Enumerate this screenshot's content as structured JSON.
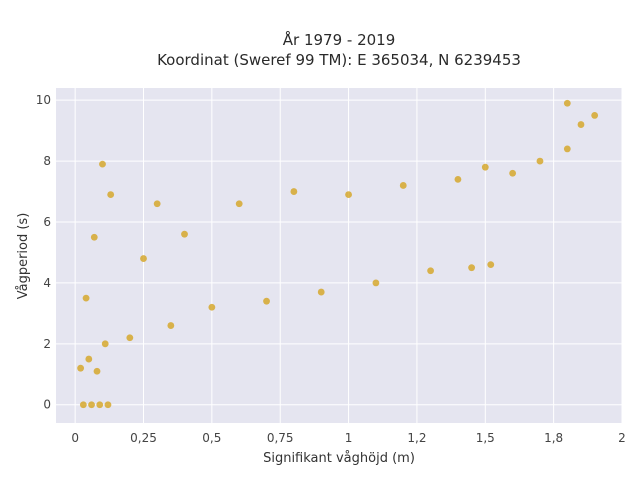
{
  "chart_data": {
    "type": "scatter",
    "title_line1": "År 1979 - 2019",
    "title_line2": "Koordinat (Sweref 99 TM): E 365034, N 6239453",
    "xlabel": "Signifikant våghöjd (m)",
    "ylabel": "Vågperiod (s)",
    "xlim": [
      -0.07,
      2.0
    ],
    "ylim": [
      -0.6,
      10.4
    ],
    "xticks": [
      0,
      0.25,
      0.5,
      0.75,
      1,
      1.25,
      1.5,
      1.75,
      2
    ],
    "xtick_labels": [
      "0",
      "0,25",
      "0,5",
      "0,75",
      "1",
      "1,2",
      "1,5",
      "1,8",
      "2"
    ],
    "yticks": [
      0,
      2,
      4,
      6,
      8,
      10
    ],
    "ytick_labels": [
      "0",
      "2",
      "4",
      "6",
      "8",
      "10"
    ],
    "grid": true,
    "colors": {
      "marker": "#d4a421",
      "plot_bg": "#e5e5f0",
      "grid": "#ffffff"
    },
    "series": [
      {
        "values": [
          {
            "x": 0.03,
            "y": 0.0
          },
          {
            "x": 0.06,
            "y": 0.0
          },
          {
            "x": 0.09,
            "y": 0.0
          },
          {
            "x": 0.12,
            "y": 0.0
          },
          {
            "x": 0.02,
            "y": 1.2
          },
          {
            "x": 0.05,
            "y": 1.5
          },
          {
            "x": 0.08,
            "y": 1.1
          },
          {
            "x": 0.11,
            "y": 2.0
          },
          {
            "x": 0.04,
            "y": 3.5
          },
          {
            "x": 0.07,
            "y": 5.5
          },
          {
            "x": 0.1,
            "y": 7.9
          },
          {
            "x": 0.13,
            "y": 6.9
          },
          {
            "x": 0.2,
            "y": 2.2
          },
          {
            "x": 0.25,
            "y": 4.8
          },
          {
            "x": 0.3,
            "y": 6.6
          },
          {
            "x": 0.35,
            "y": 2.6
          },
          {
            "x": 0.4,
            "y": 5.6
          },
          {
            "x": 0.5,
            "y": 3.2
          },
          {
            "x": 0.6,
            "y": 6.6
          },
          {
            "x": 0.7,
            "y": 3.4
          },
          {
            "x": 0.8,
            "y": 7.0
          },
          {
            "x": 0.9,
            "y": 3.7
          },
          {
            "x": 1.0,
            "y": 6.9
          },
          {
            "x": 1.1,
            "y": 4.0
          },
          {
            "x": 1.2,
            "y": 7.2
          },
          {
            "x": 1.3,
            "y": 4.4
          },
          {
            "x": 1.45,
            "y": 4.5
          },
          {
            "x": 1.52,
            "y": 4.6
          },
          {
            "x": 1.4,
            "y": 7.4
          },
          {
            "x": 1.5,
            "y": 7.8
          },
          {
            "x": 1.6,
            "y": 7.6
          },
          {
            "x": 1.7,
            "y": 8.0
          },
          {
            "x": 1.8,
            "y": 8.4
          },
          {
            "x": 1.85,
            "y": 9.2
          },
          {
            "x": 1.9,
            "y": 9.5
          },
          {
            "x": 1.8,
            "y": 9.9
          }
        ]
      }
    ]
  }
}
